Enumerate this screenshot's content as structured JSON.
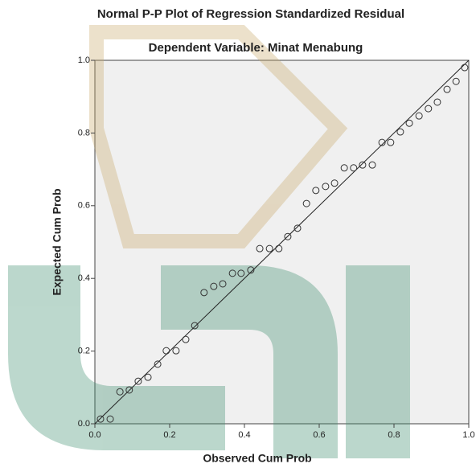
{
  "chart_data": {
    "type": "scatter",
    "title": "Normal P-P Plot of Regression Standardized Residual",
    "subtitle": "Dependent Variable: Minat Menabung",
    "x_label": "Observed Cum Prob",
    "y_label": "Expected Cum Prob",
    "x": [
      0.015,
      0.041,
      0.067,
      0.092,
      0.116,
      0.142,
      0.168,
      0.191,
      0.217,
      0.243,
      0.267,
      0.292,
      0.318,
      0.342,
      0.368,
      0.391,
      0.417,
      0.441,
      0.467,
      0.492,
      0.516,
      0.542,
      0.566,
      0.591,
      0.617,
      0.641,
      0.667,
      0.692,
      0.716,
      0.742,
      0.768,
      0.791,
      0.817,
      0.841,
      0.867,
      0.892,
      0.916,
      0.942,
      0.966,
      0.989
    ],
    "values": [
      0.013,
      0.013,
      0.088,
      0.093,
      0.117,
      0.128,
      0.164,
      0.201,
      0.201,
      0.232,
      0.27,
      0.361,
      0.378,
      0.385,
      0.414,
      0.414,
      0.423,
      0.482,
      0.482,
      0.482,
      0.515,
      0.538,
      0.606,
      0.642,
      0.653,
      0.662,
      0.704,
      0.704,
      0.712,
      0.712,
      0.774,
      0.774,
      0.803,
      0.827,
      0.847,
      0.867,
      0.885,
      0.92,
      0.942,
      0.98
    ],
    "xlim": [
      0,
      1
    ],
    "ylim": [
      0,
      1
    ],
    "xticks": [
      {
        "value": 0,
        "label": "0.0"
      },
      {
        "value": 0.2,
        "label": "0.2"
      },
      {
        "value": 0.4,
        "label": "0.4"
      },
      {
        "value": 0.6,
        "label": "0.6"
      },
      {
        "value": 0.8,
        "label": "0.8"
      },
      {
        "value": 1,
        "label": "1.0"
      }
    ],
    "yticks": [
      {
        "value": 0,
        "label": "0.0"
      },
      {
        "value": 0.2,
        "label": "0.2"
      },
      {
        "value": 0.4,
        "label": "0.4"
      },
      {
        "value": 0.6,
        "label": "0.6"
      },
      {
        "value": 0.8,
        "label": "0.8"
      },
      {
        "value": 1,
        "label": "1.0"
      }
    ],
    "grid": false,
    "color": "#333333"
  }
}
